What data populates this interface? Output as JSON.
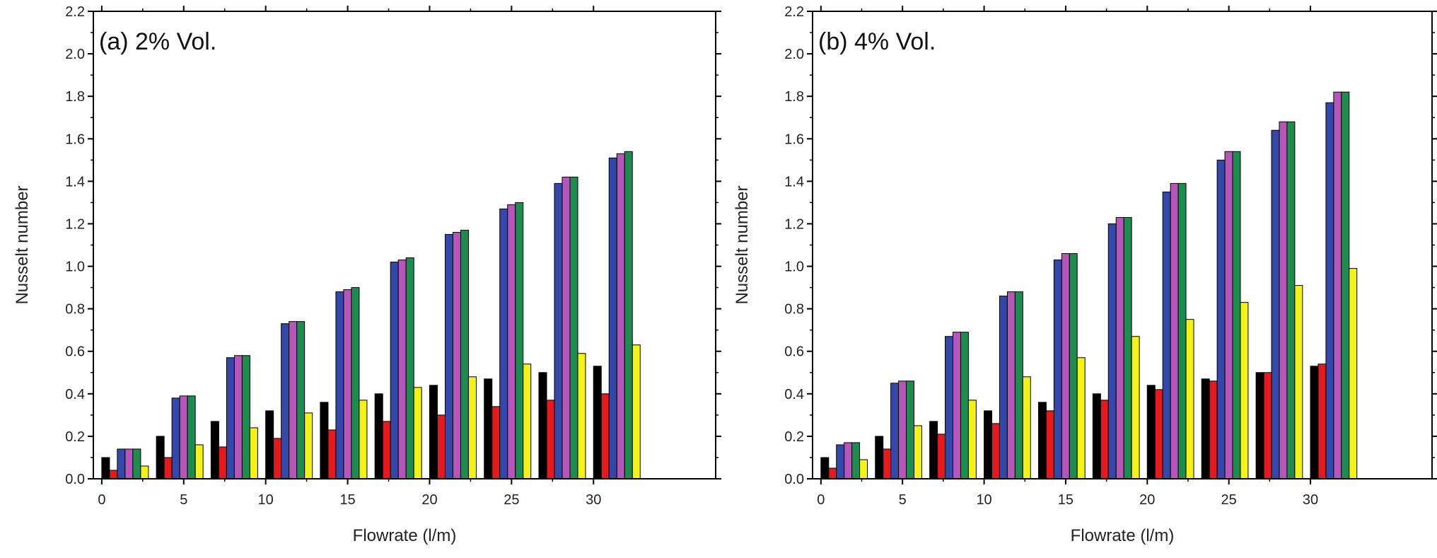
{
  "chart_data": [
    {
      "type": "bar",
      "title": "(a) 2% Vol.",
      "xlabel": "Flowrate (l/m)",
      "ylabel": "Nusselt number",
      "ylim": [
        0,
        2.2
      ],
      "yticks": [
        "0.0",
        "0.2",
        "0.4",
        "0.6",
        "0.8",
        "1.0",
        "1.2",
        "1.4",
        "1.6",
        "1.8",
        "2.0",
        "2.2"
      ],
      "xticks": [
        "0",
        "5",
        "10",
        "15",
        "20",
        "25",
        "30"
      ],
      "grid": false,
      "categories": [
        "1",
        "2",
        "3",
        "4",
        "5",
        "6",
        "7",
        "8",
        "9",
        "10"
      ],
      "colors": [
        "#000000",
        "#e41a1c",
        "#3348a8",
        "#b556b8",
        "#1e8c4e",
        "#f4f218"
      ],
      "series": [
        {
          "values": [
            0.1,
            0.2,
            0.27,
            0.32,
            0.36,
            0.4,
            0.44,
            0.47,
            0.5,
            0.53
          ]
        },
        {
          "values": [
            0.04,
            0.1,
            0.15,
            0.19,
            0.23,
            0.27,
            0.3,
            0.34,
            0.37,
            0.4
          ]
        },
        {
          "values": [
            0.14,
            0.38,
            0.57,
            0.73,
            0.88,
            1.02,
            1.15,
            1.27,
            1.39,
            1.51
          ]
        },
        {
          "values": [
            0.14,
            0.39,
            0.58,
            0.74,
            0.89,
            1.03,
            1.16,
            1.29,
            1.42,
            1.53
          ]
        },
        {
          "values": [
            0.14,
            0.39,
            0.58,
            0.74,
            0.9,
            1.04,
            1.17,
            1.3,
            1.42,
            1.54
          ]
        },
        {
          "values": [
            0.06,
            0.16,
            0.24,
            0.31,
            0.37,
            0.43,
            0.48,
            0.54,
            0.59,
            0.63
          ]
        }
      ]
    },
    {
      "type": "bar",
      "title": "(b) 4% Vol.",
      "xlabel": "Flowrate (l/m)",
      "ylabel": "Nusselt number",
      "ylim": [
        0,
        2.2
      ],
      "yticks": [
        "0.0",
        "0.2",
        "0.4",
        "0.6",
        "0.8",
        "1.0",
        "1.2",
        "1.4",
        "1.6",
        "1.8",
        "2.0",
        "2.2"
      ],
      "xticks": [
        "0",
        "5",
        "10",
        "15",
        "20",
        "25",
        "30"
      ],
      "grid": false,
      "categories": [
        "1",
        "2",
        "3",
        "4",
        "5",
        "6",
        "7",
        "8",
        "9",
        "10"
      ],
      "colors": [
        "#000000",
        "#e41a1c",
        "#3348a8",
        "#b556b8",
        "#1e8c4e",
        "#f4f218"
      ],
      "series": [
        {
          "values": [
            0.1,
            0.2,
            0.27,
            0.32,
            0.36,
            0.4,
            0.44,
            0.47,
            0.5,
            0.53
          ]
        },
        {
          "values": [
            0.05,
            0.14,
            0.21,
            0.26,
            0.32,
            0.37,
            0.42,
            0.46,
            0.5,
            0.54
          ]
        },
        {
          "values": [
            0.16,
            0.45,
            0.67,
            0.86,
            1.03,
            1.2,
            1.35,
            1.5,
            1.64,
            1.77
          ]
        },
        {
          "values": [
            0.17,
            0.46,
            0.69,
            0.88,
            1.06,
            1.23,
            1.39,
            1.54,
            1.68,
            1.82
          ]
        },
        {
          "values": [
            0.17,
            0.46,
            0.69,
            0.88,
            1.06,
            1.23,
            1.39,
            1.54,
            1.68,
            1.82
          ]
        },
        {
          "values": [
            0.09,
            0.25,
            0.37,
            0.48,
            0.57,
            0.67,
            0.75,
            0.83,
            0.91,
            0.99
          ]
        }
      ]
    }
  ]
}
